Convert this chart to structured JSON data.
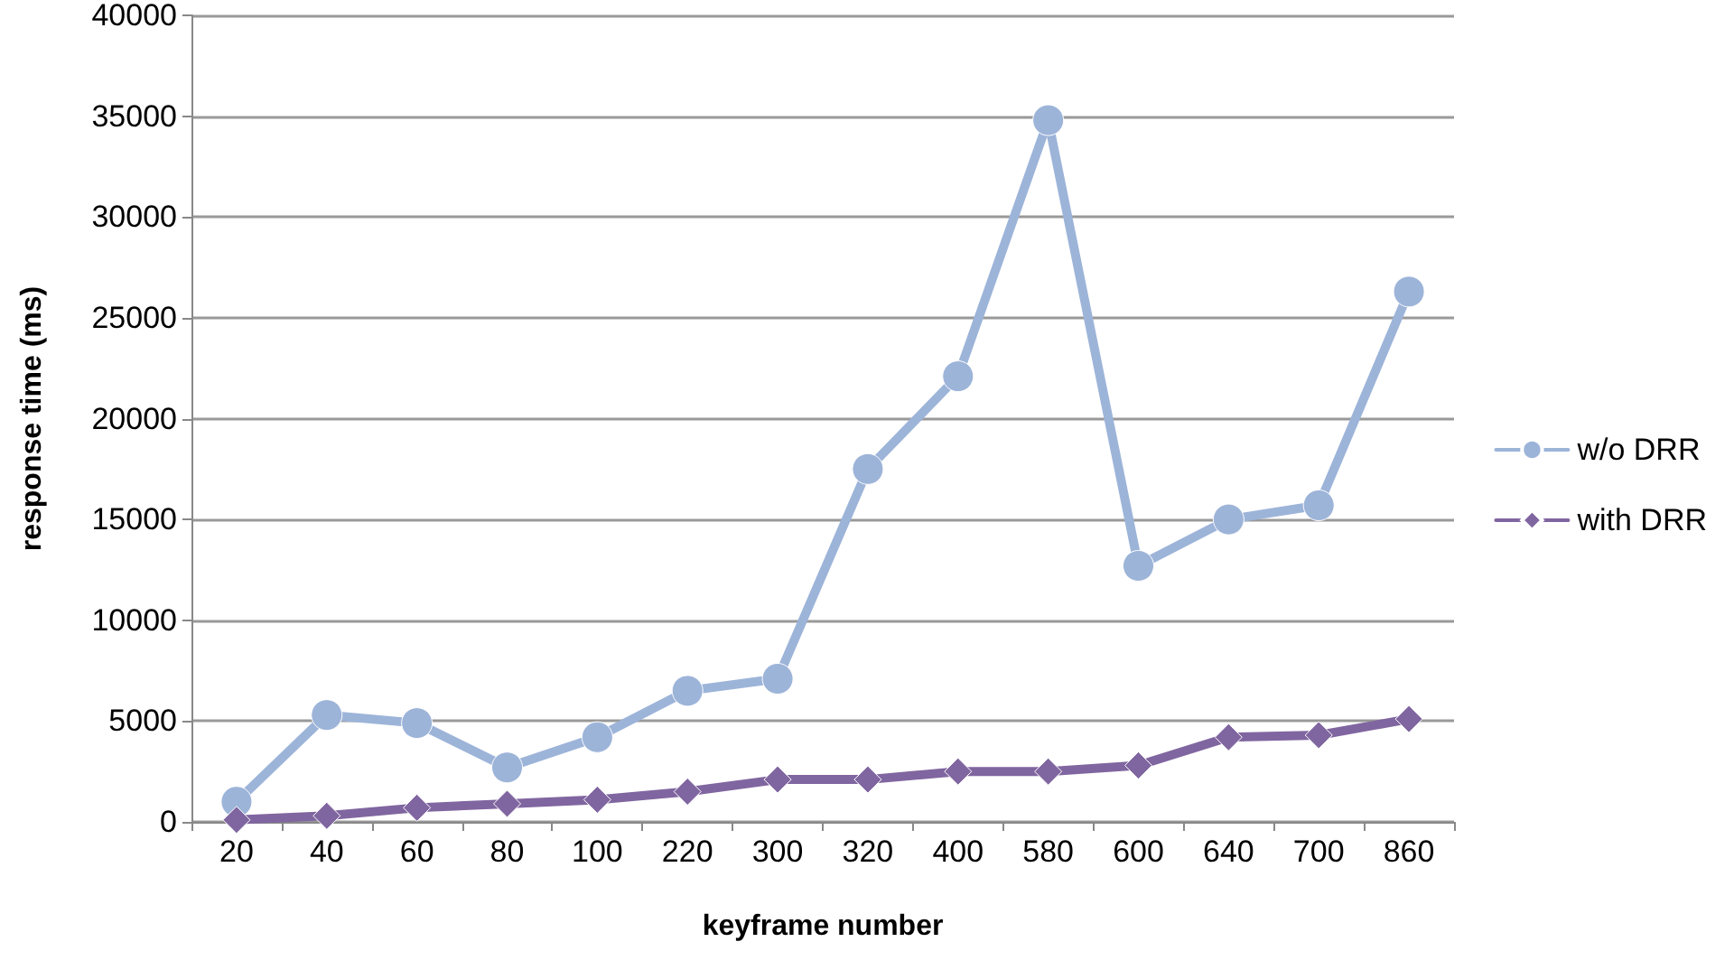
{
  "chart_data": {
    "type": "line",
    "xlabel": "keyframe number",
    "ylabel": "response time (ms)",
    "categories": [
      "20",
      "40",
      "60",
      "80",
      "100",
      "220",
      "300",
      "320",
      "400",
      "580",
      "600",
      "640",
      "700",
      "860"
    ],
    "series": [
      {
        "name": "w/o DRR",
        "color": "#9db4d9",
        "marker": "circle",
        "values": [
          1000,
          5300,
          4900,
          2700,
          4200,
          6500,
          7100,
          17500,
          22100,
          34800,
          12700,
          15000,
          15700,
          26300
        ]
      },
      {
        "name": "with DRR",
        "color": "#8066a0",
        "marker": "diamond",
        "values": [
          100,
          300,
          700,
          900,
          1100,
          1500,
          2100,
          2100,
          2500,
          2500,
          2800,
          4200,
          4300,
          5100
        ]
      }
    ],
    "ylim": [
      0,
      40000
    ],
    "yticks": [
      0,
      5000,
      10000,
      15000,
      20000,
      25000,
      30000,
      35000,
      40000
    ],
    "grid": "y",
    "legend": "right",
    "line_style": "solid"
  }
}
